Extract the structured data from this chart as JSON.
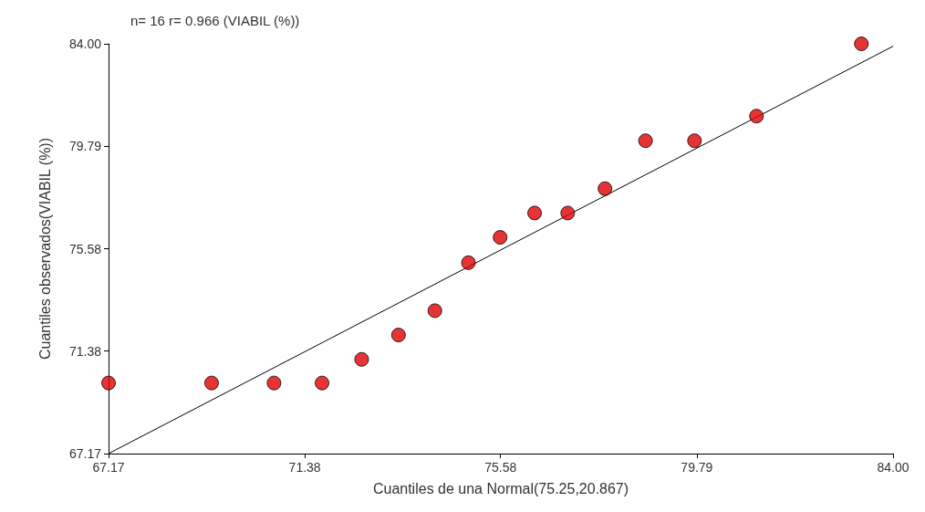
{
  "chart_data": {
    "type": "scatter",
    "title": "n= 16 r= 0.966 (VIABIL (%))",
    "xlabel": "Cuantiles de una Normal(75.25,20.867)",
    "ylabel": "Cuantiles observados(VIABIL (%))",
    "xlim": [
      67.17,
      84.0
    ],
    "ylim": [
      67.17,
      84.0
    ],
    "xticks": [
      67.17,
      71.38,
      75.58,
      79.79,
      {
        "value": 84.0,
        "label": "84.00"
      }
    ],
    "yticks": [
      67.17,
      71.38,
      75.58,
      79.79,
      {
        "value": 84.0,
        "label": "84.00"
      }
    ],
    "grid": false,
    "marker": "circle",
    "series": [
      {
        "color": "#e00000",
        "x": [
          67.17,
          69.38,
          70.72,
          71.75,
          72.6,
          73.39,
          74.17,
          74.89,
          75.57,
          76.31,
          77.02,
          77.82,
          78.69,
          79.74,
          81.07,
          83.32
        ],
        "values": [
          70.07,
          70.07,
          70.07,
          70.07,
          71.04,
          72.04,
          73.04,
          75.01,
          76.05,
          77.05,
          77.05,
          78.05,
          80.02,
          80.02,
          81.03,
          84.0
        ]
      },
      {
        "type": "line",
        "color": "#000000",
        "line_style": "solid",
        "marker": "none",
        "x": [
          67.17,
          84.0
        ],
        "values": [
          67.17,
          83.9
        ]
      }
    ]
  }
}
